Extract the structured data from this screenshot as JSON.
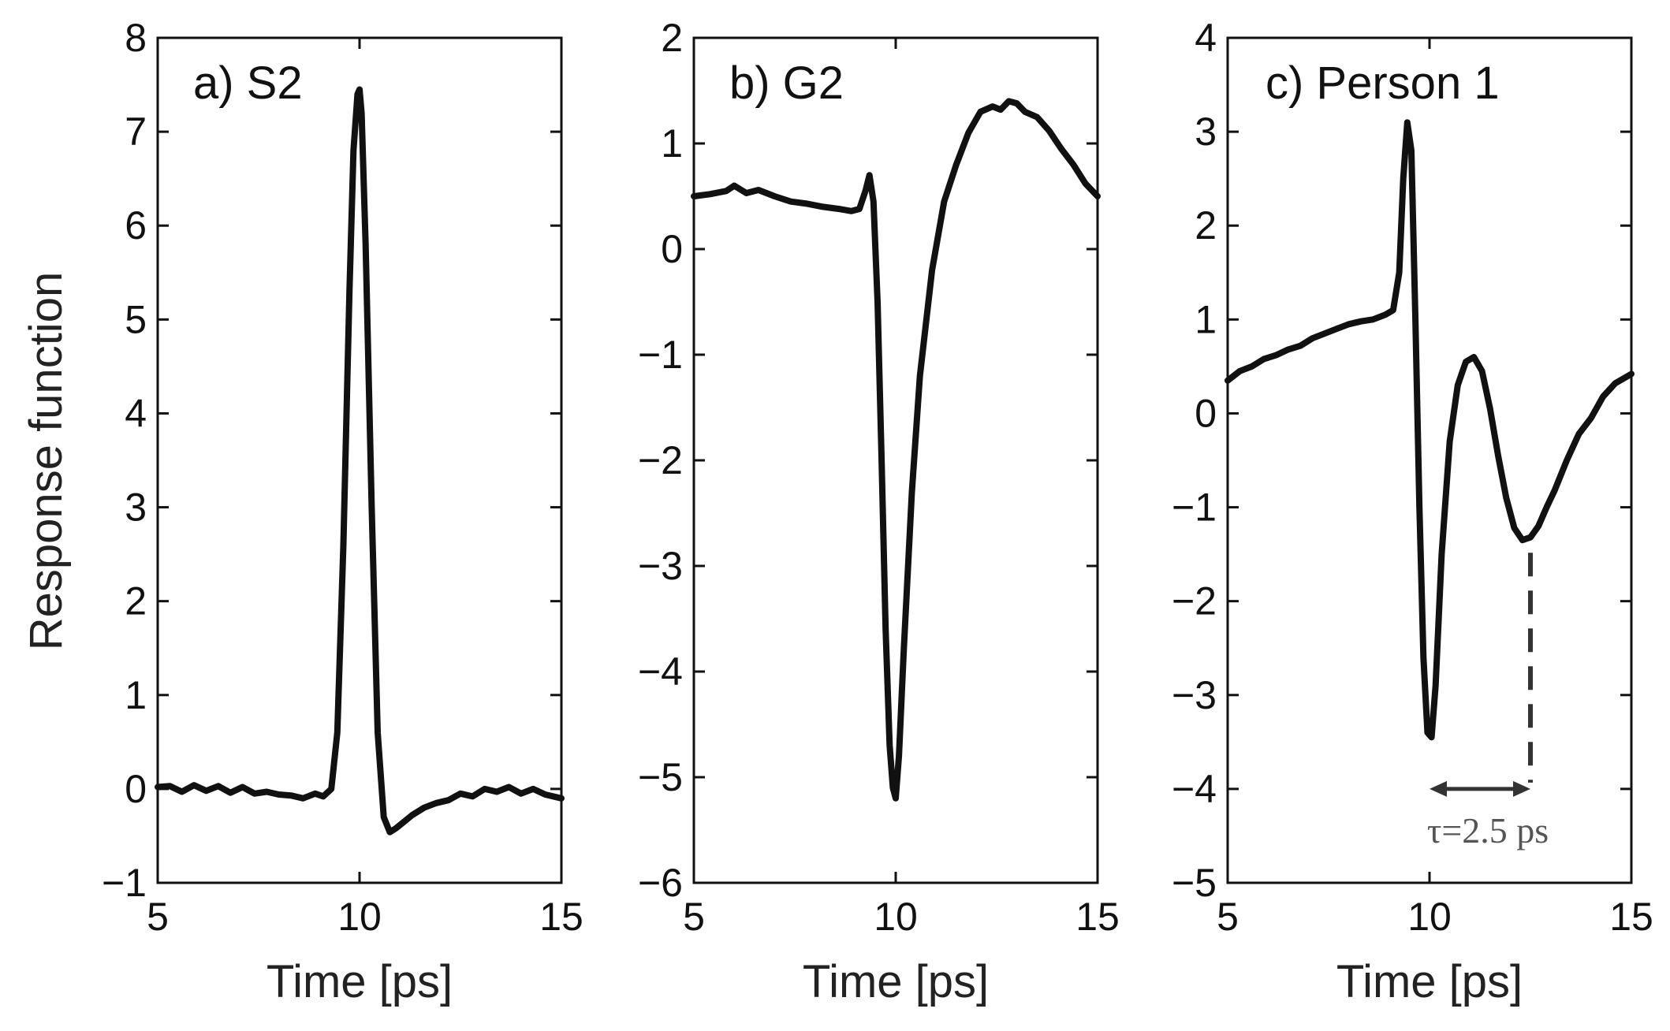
{
  "figure": {
    "ylabel": "Response function"
  },
  "chart_data": [
    {
      "type": "line",
      "panel_label": "a) S2",
      "xlabel": "Time [ps]",
      "ylabel": "Response function",
      "xlim": [
        5,
        15
      ],
      "ylim": [
        -1,
        8
      ],
      "xticks": [
        5,
        10,
        15
      ],
      "yticks": [
        -1,
        0,
        1,
        2,
        3,
        4,
        5,
        6,
        7,
        8
      ],
      "grid": false,
      "line_color": "#111111",
      "series": [
        {
          "name": "S2",
          "x": [
            5.0,
            5.3,
            5.6,
            5.9,
            6.2,
            6.5,
            6.8,
            7.1,
            7.4,
            7.7,
            8.0,
            8.3,
            8.6,
            8.9,
            9.1,
            9.3,
            9.45,
            9.6,
            9.75,
            9.85,
            9.95,
            10.0,
            10.05,
            10.15,
            10.3,
            10.45,
            10.6,
            10.75,
            10.9,
            11.1,
            11.3,
            11.6,
            11.9,
            12.2,
            12.5,
            12.8,
            13.1,
            13.4,
            13.7,
            14.0,
            14.3,
            14.6,
            15.0
          ],
          "y": [
            0.02,
            0.03,
            -0.03,
            0.04,
            -0.02,
            0.03,
            -0.04,
            0.02,
            -0.05,
            -0.03,
            -0.06,
            -0.07,
            -0.1,
            -0.05,
            -0.08,
            0.0,
            0.6,
            2.6,
            5.3,
            6.8,
            7.4,
            7.45,
            7.2,
            5.8,
            3.0,
            0.6,
            -0.3,
            -0.46,
            -0.42,
            -0.35,
            -0.28,
            -0.2,
            -0.15,
            -0.12,
            -0.05,
            -0.08,
            0.0,
            -0.03,
            0.02,
            -0.05,
            0.0,
            -0.06,
            -0.1
          ]
        }
      ]
    },
    {
      "type": "line",
      "panel_label": "b) G2",
      "xlabel": "Time [ps]",
      "xlim": [
        5,
        15
      ],
      "ylim": [
        -6,
        2
      ],
      "xticks": [
        5,
        10,
        15
      ],
      "yticks": [
        -6,
        -5,
        -4,
        -3,
        -2,
        -1,
        0,
        1,
        2
      ],
      "grid": false,
      "line_color": "#111111",
      "series": [
        {
          "name": "G2",
          "x": [
            5.0,
            5.4,
            5.8,
            6.0,
            6.3,
            6.6,
            7.0,
            7.4,
            7.8,
            8.2,
            8.6,
            8.9,
            9.1,
            9.25,
            9.35,
            9.45,
            9.55,
            9.65,
            9.75,
            9.85,
            9.93,
            10.0,
            10.08,
            10.2,
            10.4,
            10.6,
            10.9,
            11.2,
            11.5,
            11.8,
            12.1,
            12.4,
            12.6,
            12.8,
            13.0,
            13.2,
            13.5,
            13.8,
            14.1,
            14.4,
            14.7,
            15.0
          ],
          "y": [
            0.5,
            0.52,
            0.55,
            0.6,
            0.53,
            0.56,
            0.5,
            0.45,
            0.43,
            0.4,
            0.38,
            0.36,
            0.38,
            0.55,
            0.7,
            0.45,
            -0.5,
            -2.0,
            -3.6,
            -4.7,
            -5.1,
            -5.2,
            -4.8,
            -3.8,
            -2.3,
            -1.2,
            -0.2,
            0.45,
            0.8,
            1.1,
            1.3,
            1.35,
            1.32,
            1.4,
            1.38,
            1.3,
            1.25,
            1.12,
            0.95,
            0.8,
            0.62,
            0.5
          ]
        }
      ]
    },
    {
      "type": "line",
      "panel_label": "c) Person 1",
      "xlabel": "Time [ps]",
      "xlim": [
        5,
        15
      ],
      "ylim": [
        -5,
        4
      ],
      "xticks": [
        5,
        10,
        15
      ],
      "yticks": [
        -5,
        -4,
        -3,
        -2,
        -1,
        0,
        1,
        2,
        3,
        4
      ],
      "grid": false,
      "line_color": "#111111",
      "series": [
        {
          "name": "Person 1",
          "x": [
            5.0,
            5.3,
            5.6,
            5.9,
            6.2,
            6.5,
            6.8,
            7.1,
            7.4,
            7.7,
            8.0,
            8.3,
            8.6,
            8.9,
            9.1,
            9.25,
            9.35,
            9.45,
            9.55,
            9.65,
            9.75,
            9.85,
            9.95,
            10.05,
            10.15,
            10.3,
            10.5,
            10.7,
            10.9,
            11.1,
            11.3,
            11.5,
            11.7,
            11.9,
            12.1,
            12.3,
            12.5,
            12.7,
            12.9,
            13.1,
            13.4,
            13.7,
            14.0,
            14.3,
            14.6,
            15.0
          ],
          "y": [
            0.35,
            0.45,
            0.5,
            0.58,
            0.62,
            0.68,
            0.72,
            0.8,
            0.85,
            0.9,
            0.95,
            0.98,
            1.0,
            1.05,
            1.1,
            1.5,
            2.5,
            3.1,
            2.8,
            1.0,
            -1.0,
            -2.6,
            -3.4,
            -3.45,
            -2.9,
            -1.5,
            -0.3,
            0.3,
            0.55,
            0.6,
            0.45,
            0.05,
            -0.45,
            -0.9,
            -1.22,
            -1.35,
            -1.32,
            -1.2,
            -1.0,
            -0.82,
            -0.5,
            -0.22,
            -0.05,
            0.18,
            0.32,
            0.42
          ]
        }
      ],
      "annotation": {
        "text": "τ=2.5 ps",
        "x_start": 10.0,
        "x_end": 12.5,
        "y_arrow": -4.0,
        "dashed_from_y": -1.35
      }
    }
  ]
}
